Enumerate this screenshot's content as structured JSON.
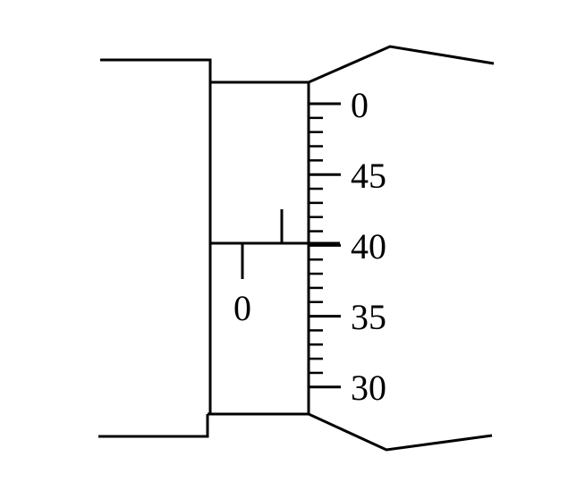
{
  "diagram": {
    "sleeve_scale": {
      "label": "0",
      "reference_line": true
    },
    "thimble_scale": {
      "labels": [
        "0",
        "45",
        "40",
        "35",
        "30"
      ],
      "label_values": [
        0,
        45,
        40,
        35,
        30
      ],
      "minor_divisions_between_labels": 5,
      "value_at_reference_line": 40
    },
    "colors": {
      "line": "#000000",
      "background": "#ffffff"
    }
  }
}
